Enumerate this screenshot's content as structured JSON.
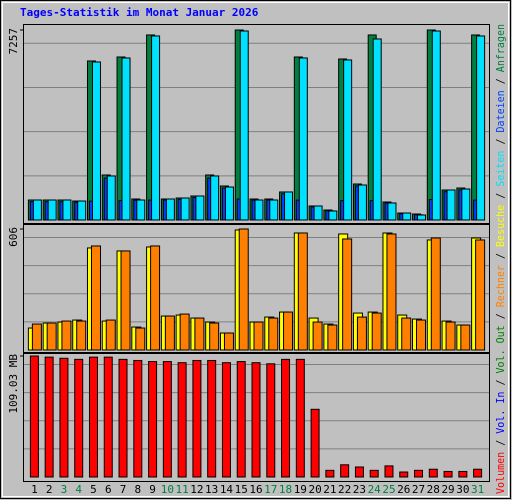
{
  "chart_data": [
    {
      "type": "bar",
      "title": "Tages-Statistik im Monat Januar 2026",
      "categories": [
        "1",
        "2",
        "3",
        "4",
        "5",
        "6",
        "7",
        "8",
        "9",
        "10",
        "11",
        "12",
        "13",
        "14",
        "15",
        "16",
        "17",
        "18",
        "19",
        "20",
        "21",
        "22",
        "23",
        "24",
        "25",
        "26",
        "27",
        "28",
        "29",
        "30",
        "31"
      ],
      "category_colors": [
        "#000000",
        "#000000",
        "#008040",
        "#008040",
        "#000000",
        "#000000",
        "#000000",
        "#000000",
        "#000000",
        "#008040",
        "#008040",
        "#000000",
        "#000000",
        "#000000",
        "#000000",
        "#000000",
        "#008040",
        "#008040",
        "#000000",
        "#000000",
        "#000000",
        "#000000",
        "#000000",
        "#008040",
        "#008040",
        "#000000",
        "#000000",
        "#000000",
        "#000000",
        "#000000",
        "#008040"
      ],
      "ylim": [
        0,
        7257
      ],
      "yticks": [
        7257
      ],
      "series": [
        {
          "name": "Anfragen",
          "color": "#008040",
          "values": [
            764,
            764,
            764,
            725,
            6074,
            1719,
            6226,
            802,
            7067,
            802,
            840,
            917,
            1719,
            1299,
            7257,
            802,
            802,
            1070,
            6226,
            535,
            382,
            6150,
            1375,
            7067,
            688,
            267,
            229,
            7257,
            1146,
            1222,
            7067
          ]
        },
        {
          "name": "Dateien",
          "color": "#0040ff",
          "values": [
            700,
            700,
            700,
            680,
            720,
            1600,
            740,
            760,
            760,
            760,
            790,
            860,
            1600,
            1220,
            800,
            760,
            760,
            1000,
            760,
            500,
            350,
            740,
            1300,
            740,
            650,
            240,
            200,
            780,
            1080,
            1150,
            760
          ]
        },
        {
          "name": "Seiten",
          "color": "#00e0ff",
          "values": [
            764,
            764,
            764,
            725,
            6036,
            1681,
            6188,
            764,
            7029,
            802,
            840,
            917,
            1681,
            1260,
            7219,
            764,
            764,
            1070,
            6188,
            535,
            344,
            6112,
            1337,
            6914,
            650,
            267,
            191,
            7219,
            1146,
            1184,
            7029
          ]
        }
      ]
    },
    {
      "type": "bar",
      "ylim": [
        0,
        606
      ],
      "yticks": [
        606
      ],
      "series": [
        {
          "name": "Besuche",
          "color": "#ffff00",
          "values": [
            110,
            135,
            140,
            150,
            511,
            145,
            496,
            115,
            516,
            170,
            175,
            160,
            140,
            85,
            601,
            140,
            165,
            190,
            586,
            160,
            130,
            581,
            185,
            190,
            586,
            175,
            155,
            551,
            145,
            125,
            561
          ]
        },
        {
          "name": "Rechner",
          "color": "#ff8000",
          "values": [
            130,
            135,
            145,
            145,
            521,
            150,
            496,
            110,
            521,
            170,
            180,
            160,
            135,
            85,
            606,
            140,
            160,
            190,
            586,
            140,
            125,
            556,
            165,
            185,
            581,
            160,
            150,
            561,
            140,
            125,
            551
          ]
        }
      ]
    },
    {
      "type": "bar",
      "ylim": [
        0,
        109.03
      ],
      "yticks": [
        {
          "value": 109.03,
          "label": "109.03 MB"
        }
      ],
      "series": [
        {
          "name": "Volumen",
          "color": "#ff0000",
          "values": [
            109.03,
            108,
            107,
            106,
            108,
            108,
            106,
            105,
            104,
            104,
            103,
            105,
            105,
            103,
            104,
            103,
            102,
            106,
            106,
            61,
            6,
            11,
            9,
            6,
            10,
            4.5,
            6,
            7,
            5,
            5,
            7
          ]
        }
      ],
      "extra_legend": [
        {
          "name": "Vol. In",
          "color": "#0000ff"
        },
        {
          "name": "Vol. Out",
          "color": "#008000"
        }
      ]
    }
  ],
  "legend_separator": " / "
}
